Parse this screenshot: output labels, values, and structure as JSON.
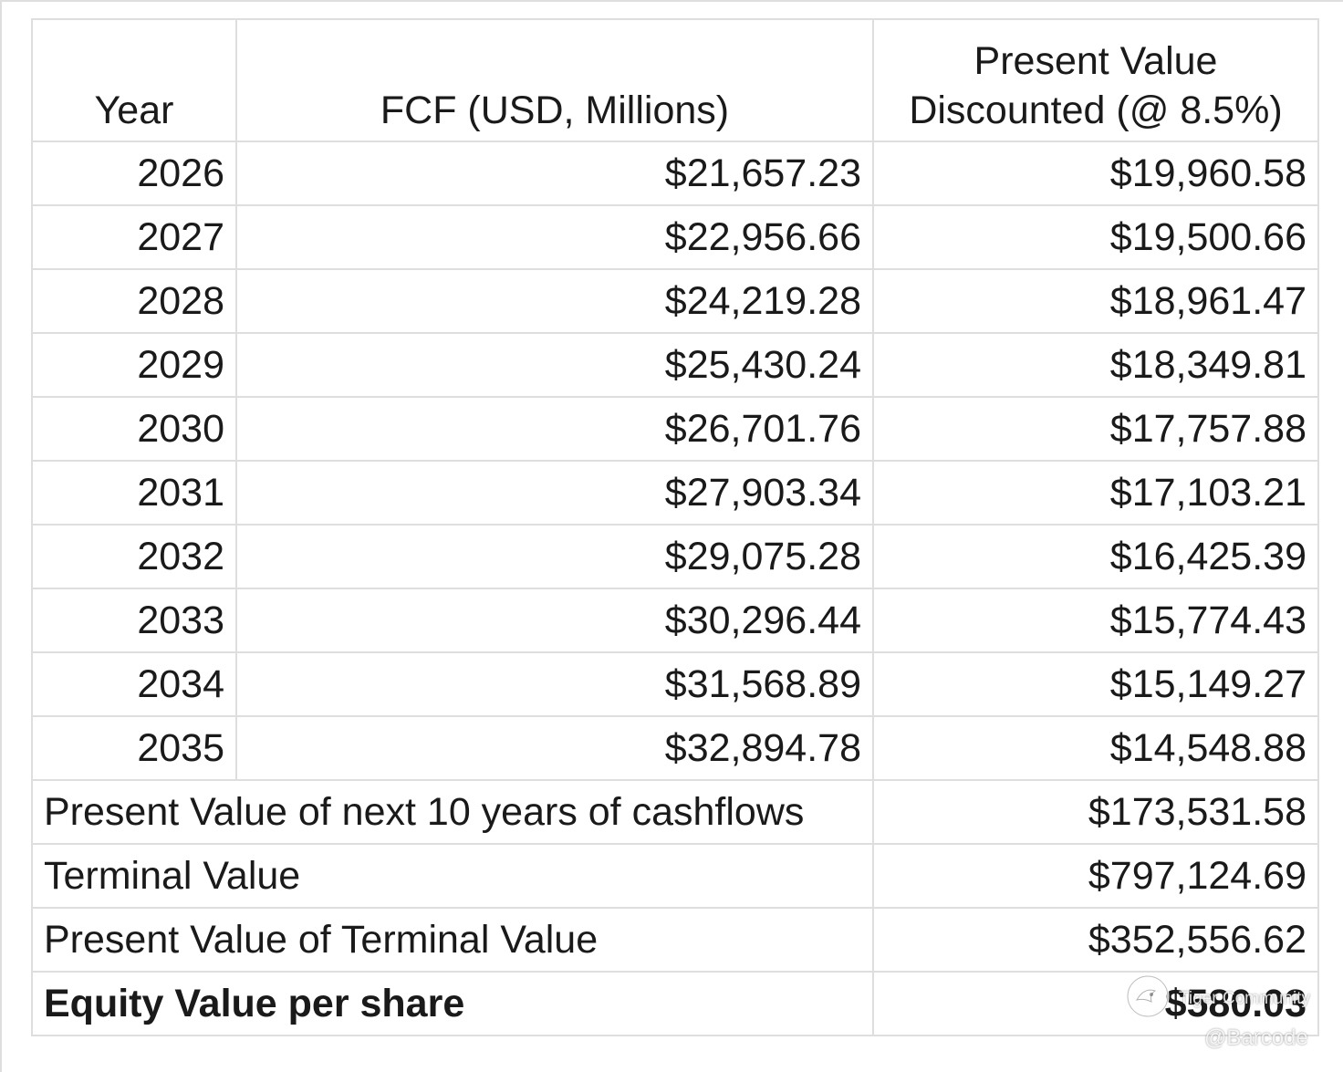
{
  "table": {
    "headers": {
      "year": "Year",
      "fcf": "FCF (USD, Millions)",
      "pv_line1": "Present Value",
      "pv_line2": "Discounted (@ 8.5%)"
    },
    "rows": [
      {
        "year": "2026",
        "fcf": "$21,657.23",
        "pv": "$19,960.58"
      },
      {
        "year": "2027",
        "fcf": "$22,956.66",
        "pv": "$19,500.66"
      },
      {
        "year": "2028",
        "fcf": "$24,219.28",
        "pv": "$18,961.47"
      },
      {
        "year": "2029",
        "fcf": "$25,430.24",
        "pv": "$18,349.81"
      },
      {
        "year": "2030",
        "fcf": "$26,701.76",
        "pv": "$17,757.88"
      },
      {
        "year": "2031",
        "fcf": "$27,903.34",
        "pv": "$17,103.21"
      },
      {
        "year": "2032",
        "fcf": "$29,075.28",
        "pv": "$16,425.39"
      },
      {
        "year": "2033",
        "fcf": "$30,296.44",
        "pv": "$15,774.43"
      },
      {
        "year": "2034",
        "fcf": "$31,568.89",
        "pv": "$15,149.27"
      },
      {
        "year": "2035",
        "fcf": "$32,894.78",
        "pv": "$14,548.88"
      }
    ],
    "summary": [
      {
        "label": "Present Value of next 10 years of cashflows",
        "value": "$173,531.58"
      },
      {
        "label": "Terminal Value",
        "value": "$797,124.69"
      },
      {
        "label": "Present Value of Terminal Value",
        "value": "$352,556.62"
      },
      {
        "label": "Equity Value per share",
        "value": "$580.03"
      }
    ]
  },
  "watermark": {
    "brand": "Tiger Community",
    "handle": "@Barcode",
    "icon": "tiger-logo-icon"
  },
  "colors": {
    "gridline": "#dedede",
    "separator": "#111111",
    "text": "#1a1a1a"
  }
}
